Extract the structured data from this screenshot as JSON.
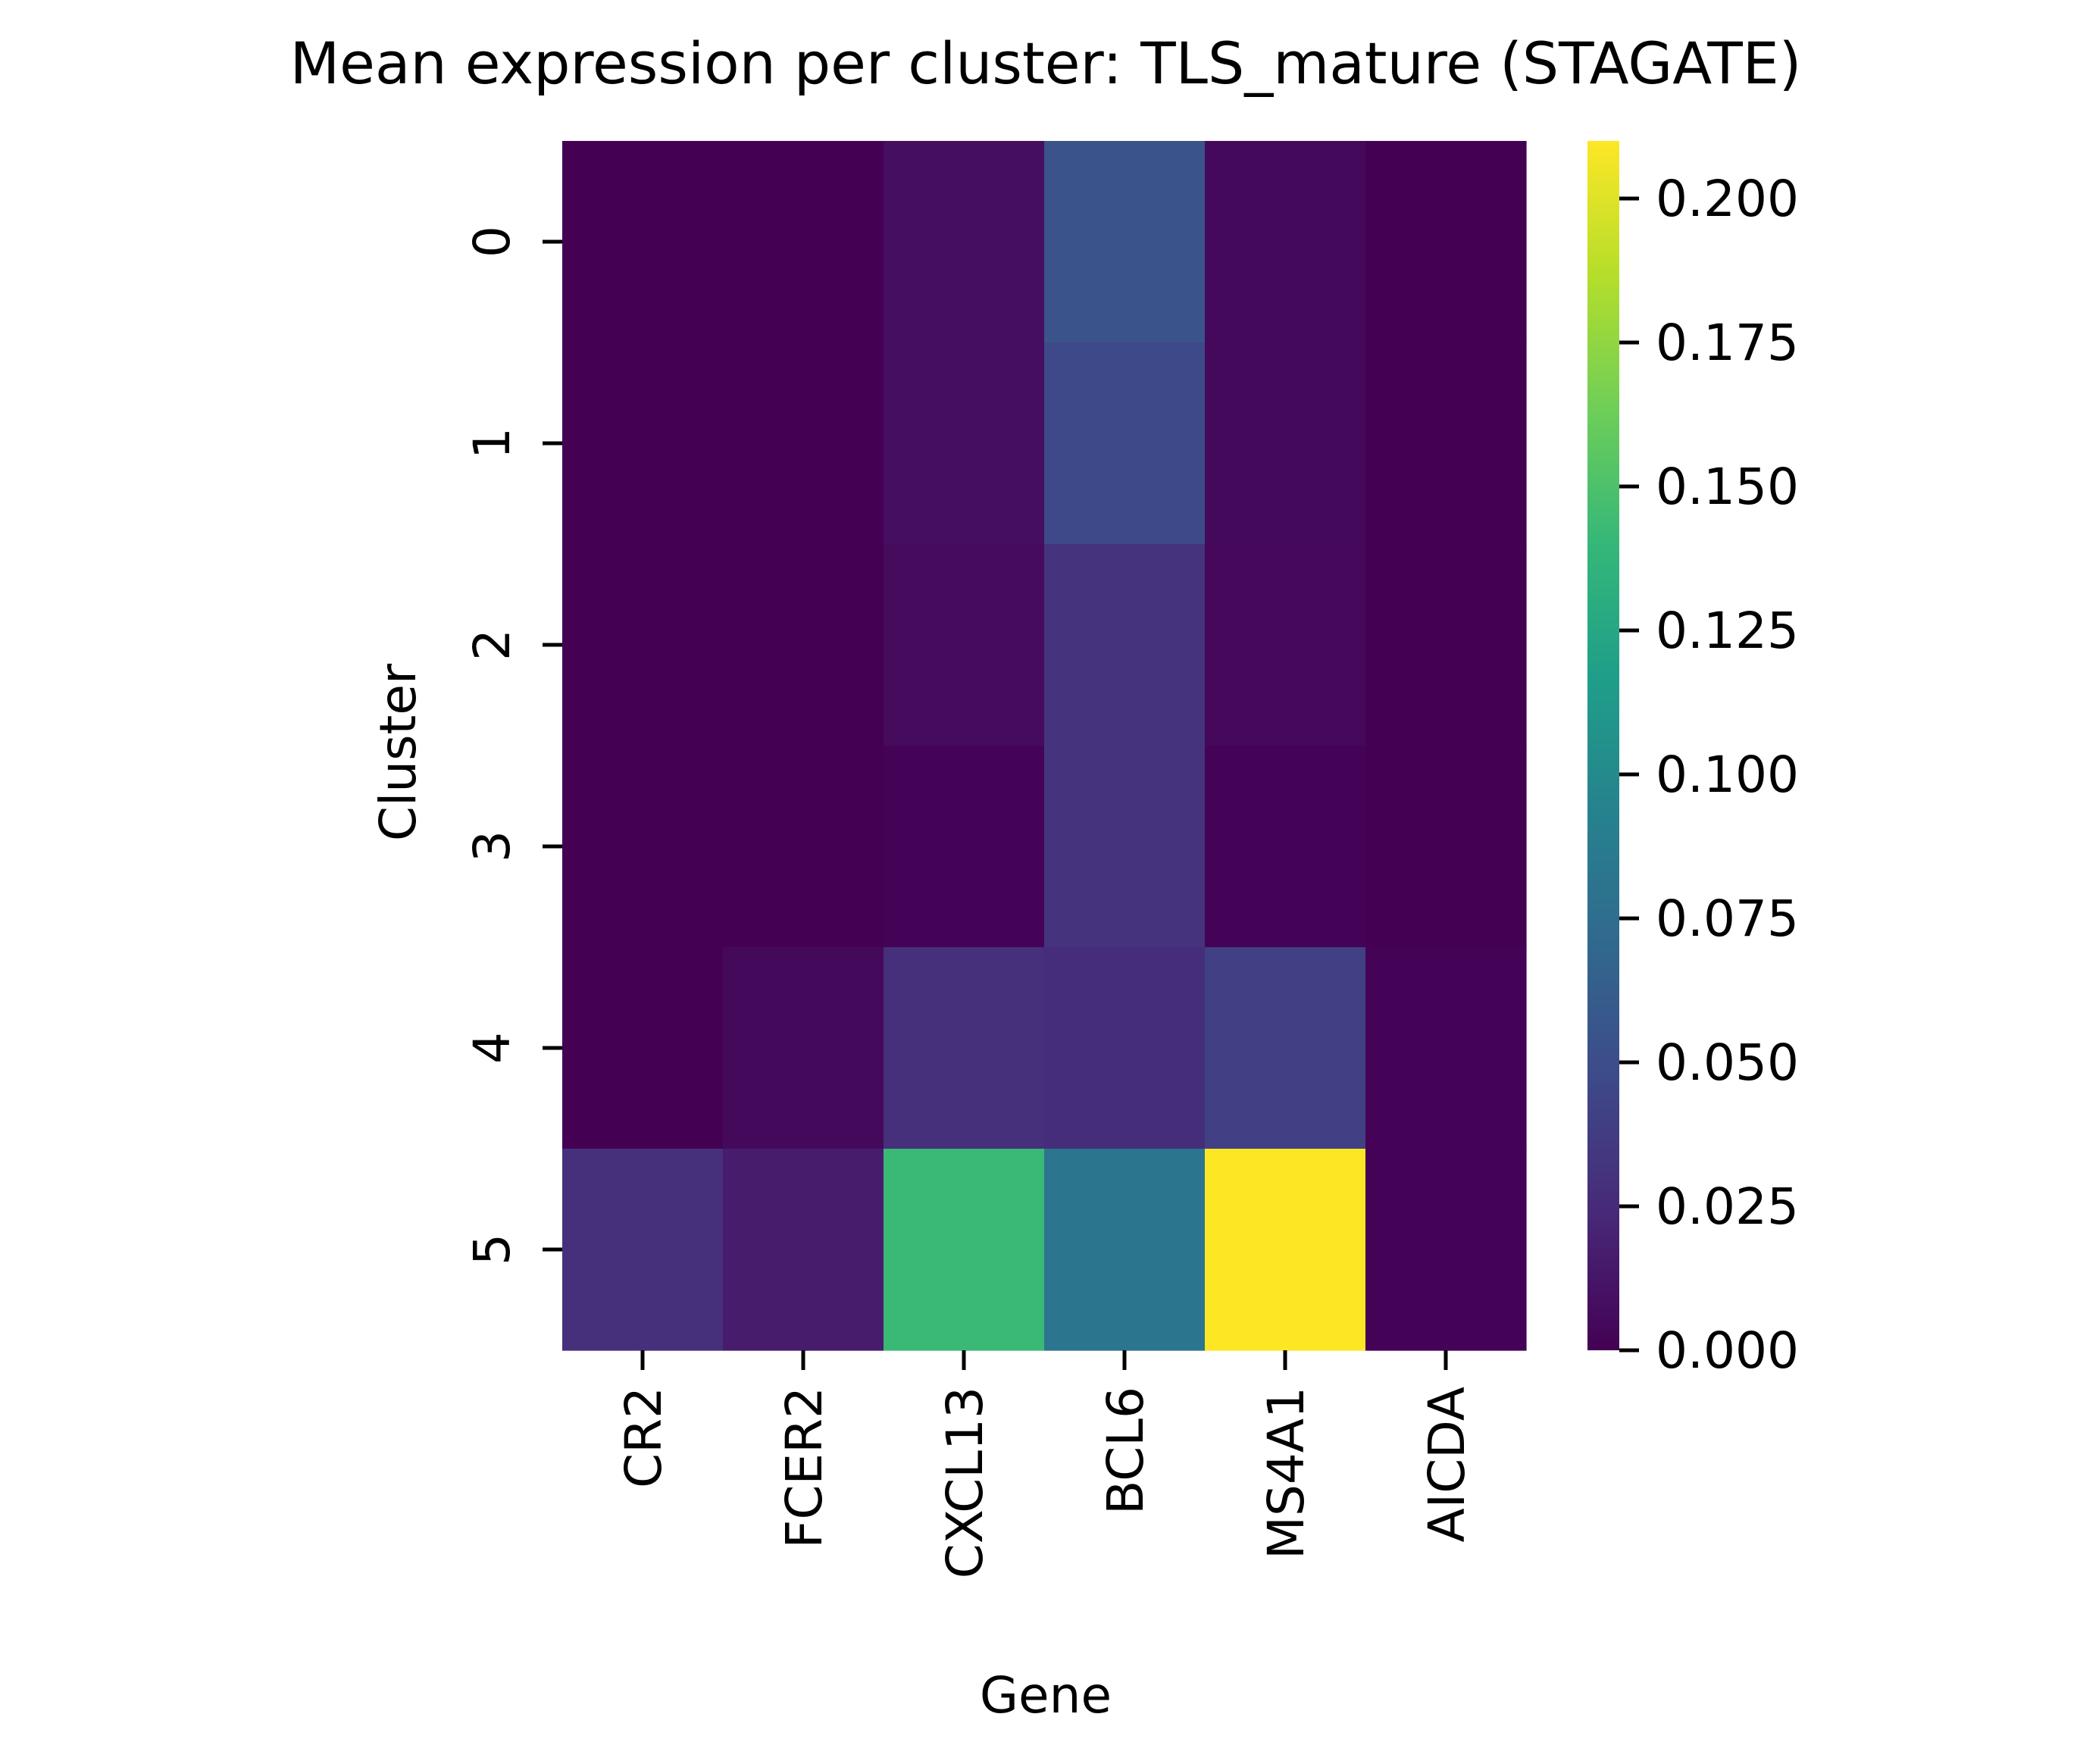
{
  "chart_data": {
    "type": "heatmap",
    "title": "Mean expression per cluster: TLS_mature (STAGATE)",
    "xlabel": "Gene",
    "ylabel": "Cluster",
    "x": [
      "CR2",
      "FCER2",
      "CXCL13",
      "BCL6",
      "MS4A1",
      "AICDA"
    ],
    "y": [
      "0",
      "1",
      "2",
      "3",
      "4",
      "5"
    ],
    "values": [
      [
        0.0,
        0.0,
        0.008,
        0.054,
        0.005,
        0.0
      ],
      [
        0.0,
        0.0,
        0.008,
        0.047,
        0.005,
        0.0
      ],
      [
        0.0,
        0.0,
        0.006,
        0.031,
        0.004,
        0.0
      ],
      [
        0.0,
        0.0,
        0.001,
        0.031,
        0.001,
        0.0
      ],
      [
        0.0,
        0.005,
        0.028,
        0.027,
        0.04,
        0.001
      ],
      [
        0.029,
        0.016,
        0.142,
        0.083,
        0.21,
        0.001
      ]
    ],
    "colormap": "viridis",
    "colorbar": {
      "min": 0.0,
      "max": 0.21,
      "ticks": [
        0.0,
        0.025,
        0.05,
        0.075,
        0.1,
        0.125,
        0.15,
        0.175,
        0.2
      ],
      "tick_labels": [
        "0.000",
        "0.025",
        "0.050",
        "0.075",
        "0.100",
        "0.125",
        "0.150",
        "0.175",
        "0.200"
      ]
    },
    "grid": false,
    "colors": {
      "viridis": [
        "#440154",
        "#482878",
        "#3e4989",
        "#31688e",
        "#26828e",
        "#1f9e89",
        "#35b779",
        "#6ece58",
        "#b5de2b",
        "#fde725"
      ]
    }
  }
}
